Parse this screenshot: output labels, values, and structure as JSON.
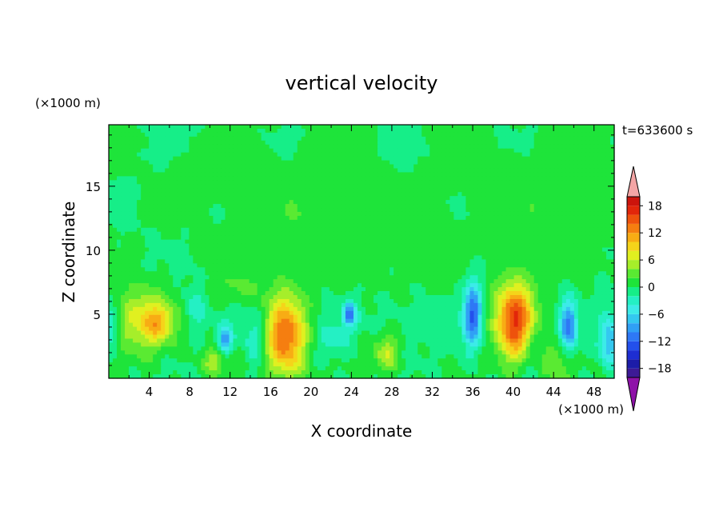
{
  "chart_data": {
    "type": "heatmap",
    "title": "vertical velocity",
    "xlabel": "X coordinate",
    "ylabel": "Z coordinate",
    "x_unit": "(×1000 m)",
    "y_unit": "(×1000 m)",
    "time_label": "t=633600 s",
    "xlim": [
      0,
      50
    ],
    "ylim": [
      0,
      19.8
    ],
    "xticks": [
      "4",
      "8",
      "12",
      "16",
      "20",
      "24",
      "28",
      "32",
      "36",
      "40",
      "44",
      "48"
    ],
    "yticks": [
      "5",
      "10",
      "15"
    ],
    "colorbar": {
      "tick_labels": [
        "18",
        "12",
        "6",
        "0",
        "−6",
        "−12",
        "−18"
      ],
      "levels": [
        -20,
        -18,
        -16,
        -14,
        -12,
        -10,
        -8,
        -6,
        -4,
        -2,
        0,
        2,
        4,
        6,
        8,
        10,
        12,
        14,
        16,
        18,
        20
      ],
      "colors": [
        "#3d1a96",
        "#1c1ca8",
        "#1e2ed2",
        "#2350ec",
        "#2e78f5",
        "#30a0f5",
        "#34c8f0",
        "#3cebe8",
        "#24f0c4",
        "#16ee88",
        "#1ee43a",
        "#5aea32",
        "#a6ee2a",
        "#e0f020",
        "#f5d41a",
        "#f8ac14",
        "#f57e10",
        "#ee520c",
        "#e2260a",
        "#cc140c"
      ],
      "under_color": "#8e12a8",
      "over_color": "#f4a5a5"
    },
    "features": [
      {
        "x": 3.5,
        "z": 4.5,
        "w": 2.8,
        "h": 2.4,
        "v": 8
      },
      {
        "x": 5,
        "z": 4.3,
        "w": 1.2,
        "h": 1.2,
        "v": 5
      },
      {
        "x": 17.5,
        "z": 3.2,
        "w": 1.9,
        "h": 3.2,
        "v": 14
      },
      {
        "x": 40.2,
        "z": 4.5,
        "w": 1.9,
        "h": 3.0,
        "v": 16
      },
      {
        "x": 27.5,
        "z": 2.0,
        "w": 1.4,
        "h": 1.5,
        "v": 6
      },
      {
        "x": 10.5,
        "z": 1.4,
        "w": 1.2,
        "h": 1.0,
        "v": 5
      },
      {
        "x": 44.2,
        "z": 1.3,
        "w": 1.4,
        "h": 1.6,
        "v": 4
      },
      {
        "x": 13,
        "z": 7,
        "w": 3,
        "h": 1.2,
        "v": 2
      },
      {
        "x": 36,
        "z": 5.0,
        "w": 0.9,
        "h": 2.5,
        "v": -12
      },
      {
        "x": 45.5,
        "z": 4.0,
        "w": 0.8,
        "h": 2.0,
        "v": -11
      },
      {
        "x": 11.5,
        "z": 3.0,
        "w": 0.7,
        "h": 1.1,
        "v": -9
      },
      {
        "x": 23.8,
        "z": 5.0,
        "w": 0.7,
        "h": 1.0,
        "v": -10
      },
      {
        "x": 49.5,
        "z": 3.0,
        "w": 1.0,
        "h": 2.0,
        "v": -8
      },
      {
        "x": 8.5,
        "z": 5.5,
        "w": 1.0,
        "h": 1.5,
        "v": -4
      },
      {
        "x": 14.5,
        "z": 3.0,
        "w": 1.0,
        "h": 2.0,
        "v": -4
      },
      {
        "x": 42,
        "z": 2.5,
        "w": 1.0,
        "h": 2.0,
        "v": -3
      },
      {
        "x": 30,
        "z": 4.0,
        "w": 4.0,
        "h": 2.0,
        "v": -1.5
      },
      {
        "x": 0.3,
        "z": 4.0,
        "w": 0.8,
        "h": 2.0,
        "v": -4
      },
      {
        "x": 22,
        "z": 3.0,
        "w": 1.5,
        "h": 1.5,
        "v": -3
      },
      {
        "x": 20,
        "z": 13,
        "w": 8,
        "h": 4.5,
        "v": 1.5
      },
      {
        "x": 30,
        "z": 10,
        "w": 4,
        "h": 3,
        "v": 1.2
      },
      {
        "x": 44,
        "z": 14,
        "w": 8,
        "h": 4,
        "v": 1.5
      },
      {
        "x": 10,
        "z": 16,
        "w": 4,
        "h": 2,
        "v": 1.2
      }
    ]
  }
}
